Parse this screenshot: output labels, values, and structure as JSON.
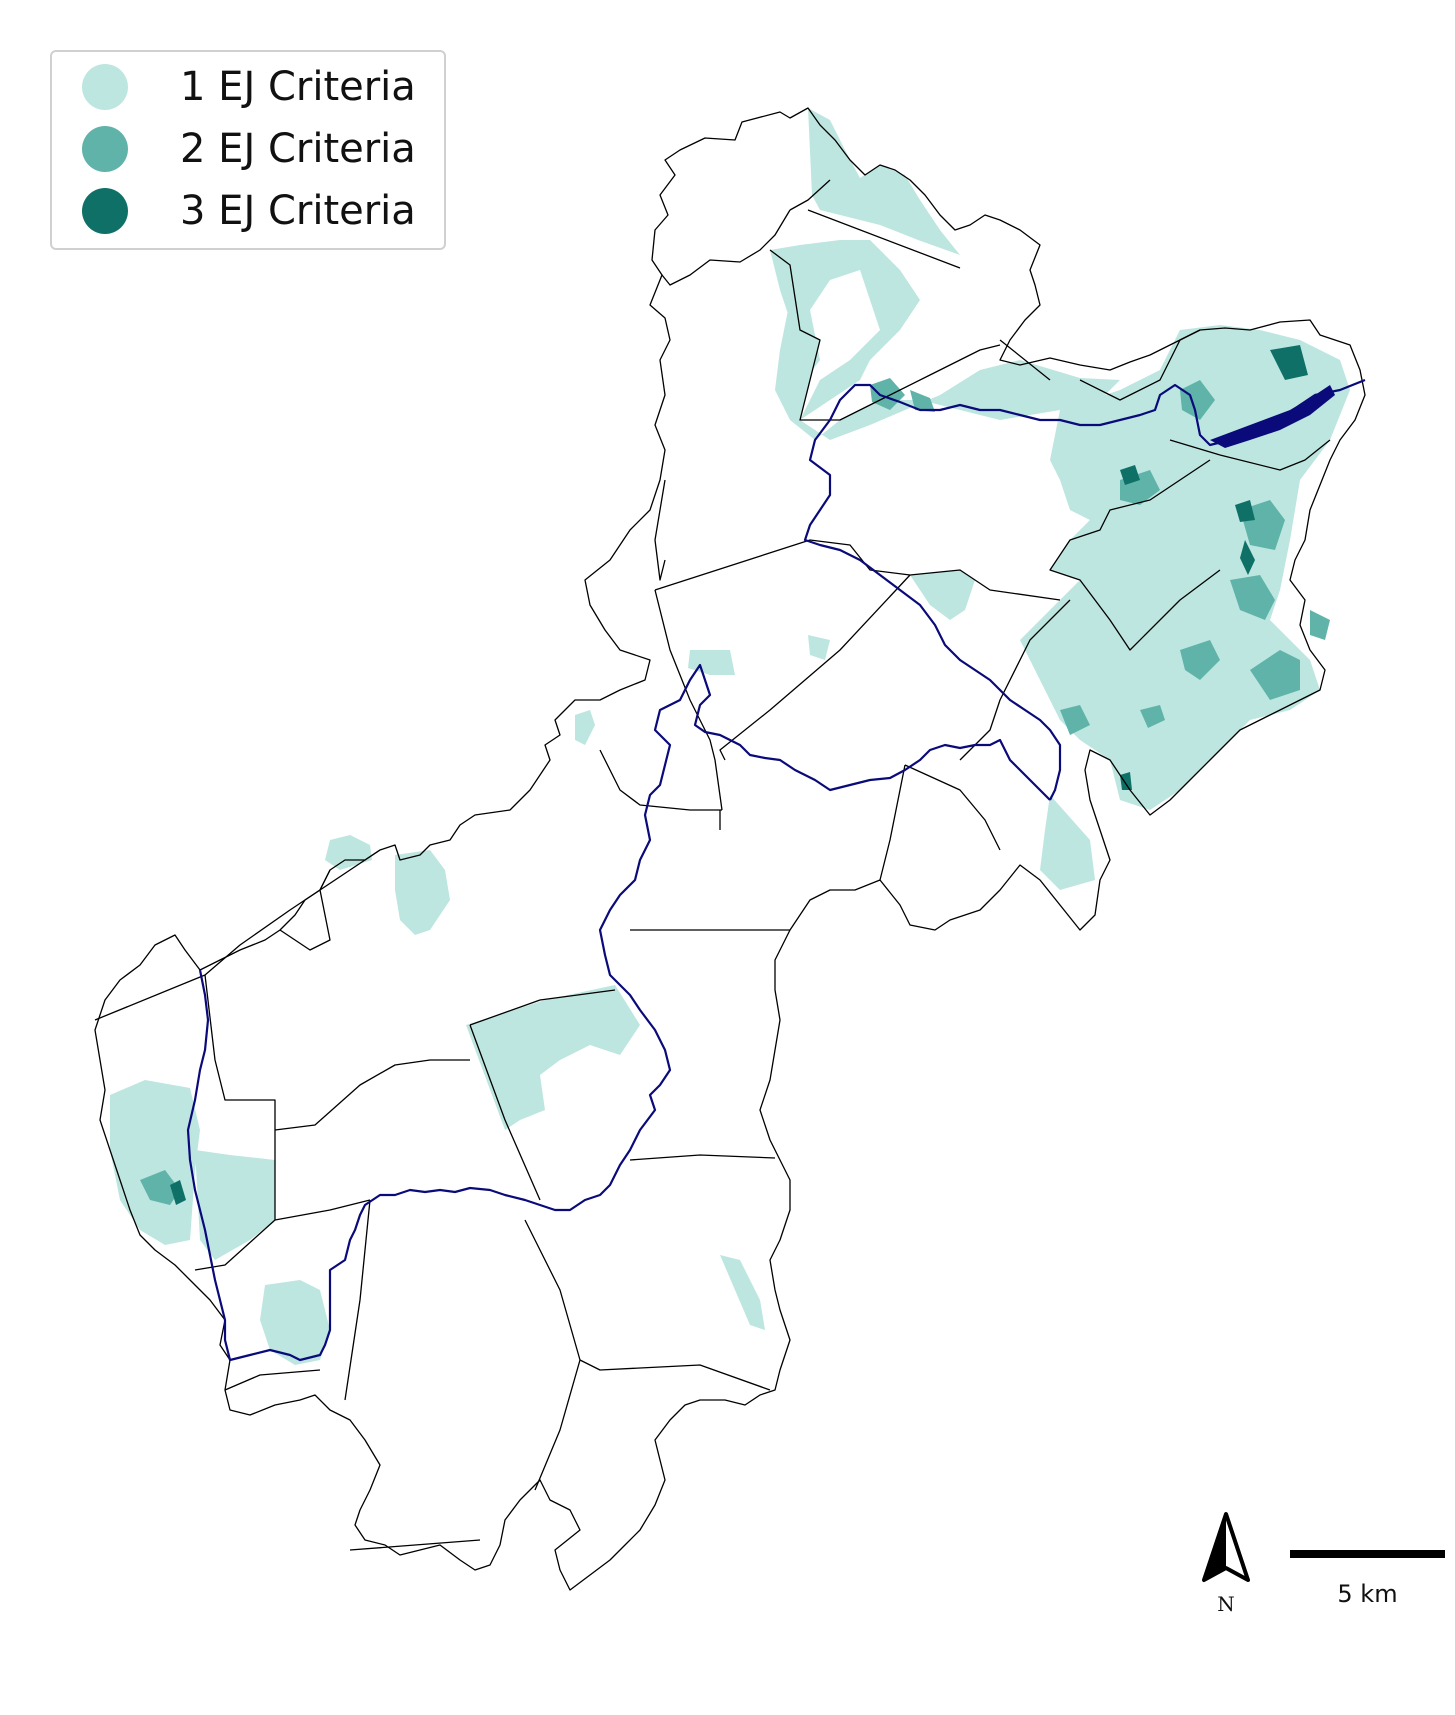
{
  "legend": {
    "items": [
      {
        "label": "1 EJ Criteria",
        "color": "#bde6e0"
      },
      {
        "label": "2 EJ Criteria",
        "color": "#5fb3a9"
      },
      {
        "label": "3 EJ Criteria",
        "color": "#0f7068"
      }
    ]
  },
  "north_arrow": {
    "label": "N",
    "icon": "north-arrow-icon"
  },
  "scale_bar": {
    "label": "5 km"
  },
  "colors": {
    "river": "#0a0a7a",
    "boundary": "#000000"
  }
}
